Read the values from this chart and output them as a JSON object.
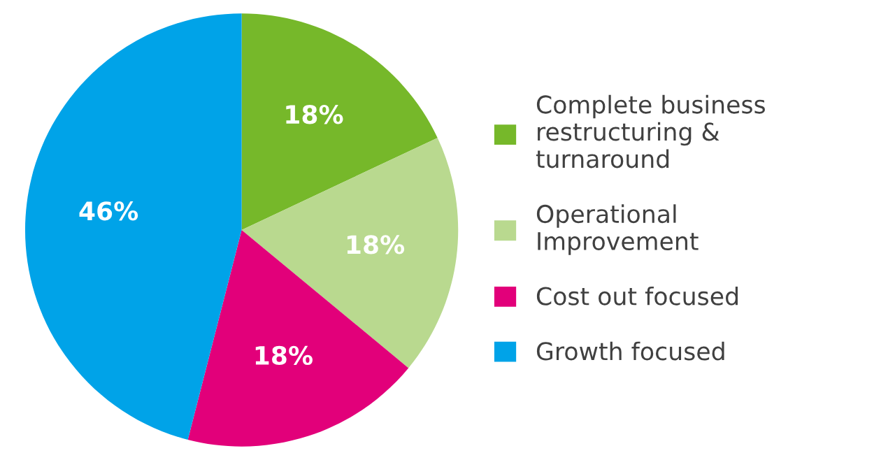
{
  "chart_data": {
    "type": "pie",
    "categories": [
      "Complete business\nrestructuring &\nturnaround",
      "Operational\nImprovement",
      "Cost out focused",
      "Growth focused"
    ],
    "values": [
      18,
      18,
      18,
      46
    ],
    "colors": [
      "#76b82a",
      "#b9d98f",
      "#e2007a",
      "#00a3e8"
    ],
    "value_labels": [
      "18%",
      "18%",
      "18%",
      "46%"
    ],
    "legend": "right"
  }
}
